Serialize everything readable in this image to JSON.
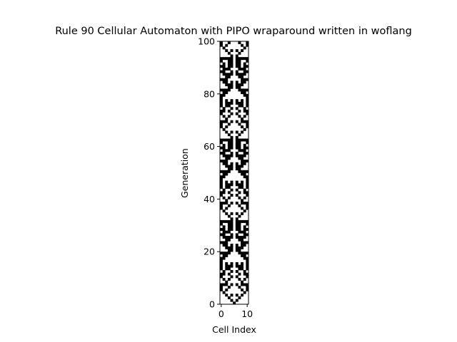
{
  "chart_data": {
    "type": "heatmap",
    "title": "Rule 90 Cellular Automaton with PIPO wraparound written in woflang",
    "xlabel": "Cell Index",
    "ylabel": "Generation",
    "xlim": [
      0,
      11
    ],
    "ylim": [
      0,
      100
    ],
    "x_ticks": [
      "0",
      "10"
    ],
    "y_ticks": [
      "0",
      "20",
      "40",
      "60",
      "80",
      "100"
    ],
    "cells": 11,
    "generations": 100,
    "rule": 90,
    "boundary": "wraparound",
    "initial_live_cells": [
      5
    ],
    "colors": {
      "live": "#000000",
      "dead": "#ffffff",
      "frame": "#000000"
    }
  }
}
